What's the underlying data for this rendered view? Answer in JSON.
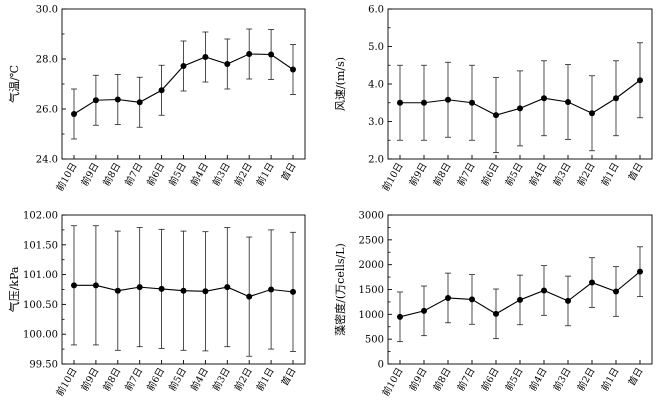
{
  "categories": [
    "前10日",
    "前9日",
    "前8日",
    "前7日",
    "前6日",
    "前5日",
    "前4日",
    "前3日",
    "前2日",
    "前1日",
    "首日"
  ],
  "chart_data": [
    {
      "type": "line",
      "ylabel": "气温/℃",
      "ylim": [
        24.0,
        30.0
      ],
      "yticks": [
        "24.0",
        "26.0",
        "28.0",
        "30.0"
      ],
      "values": [
        25.8,
        26.35,
        26.38,
        26.27,
        26.75,
        27.72,
        28.08,
        27.8,
        28.2,
        28.18,
        27.58
      ],
      "errors": [
        1.0,
        1.0,
        1.0,
        1.0,
        1.0,
        1.0,
        1.0,
        1.0,
        1.0,
        1.0,
        1.0
      ],
      "grid": false
    },
    {
      "type": "line",
      "ylabel": "风速/(m/s)",
      "ylim": [
        2.0,
        6.0
      ],
      "yticks": [
        "2.0",
        "3.0",
        "4.0",
        "5.0",
        "6.0"
      ],
      "values": [
        3.5,
        3.5,
        3.58,
        3.5,
        3.17,
        3.35,
        3.62,
        3.52,
        3.22,
        3.62,
        4.1
      ],
      "errors": [
        1.0,
        1.0,
        1.0,
        1.0,
        1.0,
        1.0,
        1.0,
        1.0,
        1.0,
        1.0,
        1.0
      ],
      "grid": false
    },
    {
      "type": "line",
      "ylabel": "气压/kPa",
      "ylim": [
        99.5,
        102.0
      ],
      "yticks": [
        "99.50",
        "100.00",
        "100.50",
        "101.00",
        "101.50",
        "102.00"
      ],
      "values": [
        100.82,
        100.82,
        100.73,
        100.79,
        100.76,
        100.73,
        100.72,
        100.79,
        100.63,
        100.75,
        100.71
      ],
      "errors": [
        1.0,
        1.0,
        1.0,
        1.0,
        1.0,
        1.0,
        1.0,
        1.0,
        1.0,
        1.0,
        1.0
      ],
      "grid": false
    },
    {
      "type": "line",
      "ylabel": "藻密度/(万cells/L)",
      "ylim": [
        0,
        3000
      ],
      "yticks": [
        "0",
        "500",
        "1000",
        "1500",
        "2000",
        "2500",
        "3000"
      ],
      "values": [
        950,
        1070,
        1330,
        1300,
        1010,
        1290,
        1480,
        1270,
        1640,
        1460,
        1860
      ],
      "errors": [
        500,
        500,
        500,
        500,
        500,
        500,
        500,
        500,
        500,
        500,
        500
      ],
      "grid": false
    }
  ]
}
